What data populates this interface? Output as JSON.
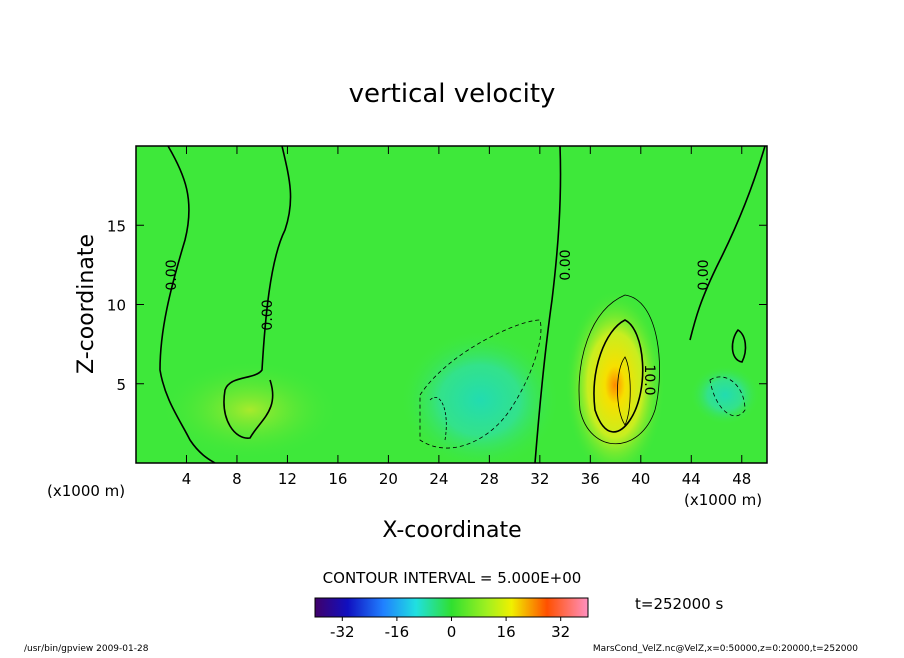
{
  "chart_data": {
    "type": "contour",
    "title": "vertical velocity",
    "x_label": "X-coordinate",
    "y_label": "Z-coordinate",
    "x_unit": "(x1000 m)",
    "y_unit": "(x1000 m)",
    "xlim": [
      0,
      50
    ],
    "xticks": [
      4,
      8,
      12,
      16,
      20,
      24,
      28,
      32,
      36,
      40,
      44,
      48
    ],
    "ylim": [
      0,
      20
    ],
    "yticks": [
      5,
      10,
      15
    ],
    "contour_interval": "CONTOUR INTERVAL = 5.000E+00",
    "contour_labels": [
      "0.00",
      "0.00",
      "0.00",
      "0.00",
      "10.0"
    ],
    "colorbar": {
      "lim": [
        -40,
        40
      ],
      "ticks": [
        -32,
        -16,
        0,
        16,
        32
      ]
    },
    "time_label": "t=252000 s",
    "footer_left": "/usr/bin/gpview  2009-01-28",
    "footer_right": "MarsCond_VelZ.nc@VelZ,x=0:50000,z=0:20000,t=252000"
  }
}
